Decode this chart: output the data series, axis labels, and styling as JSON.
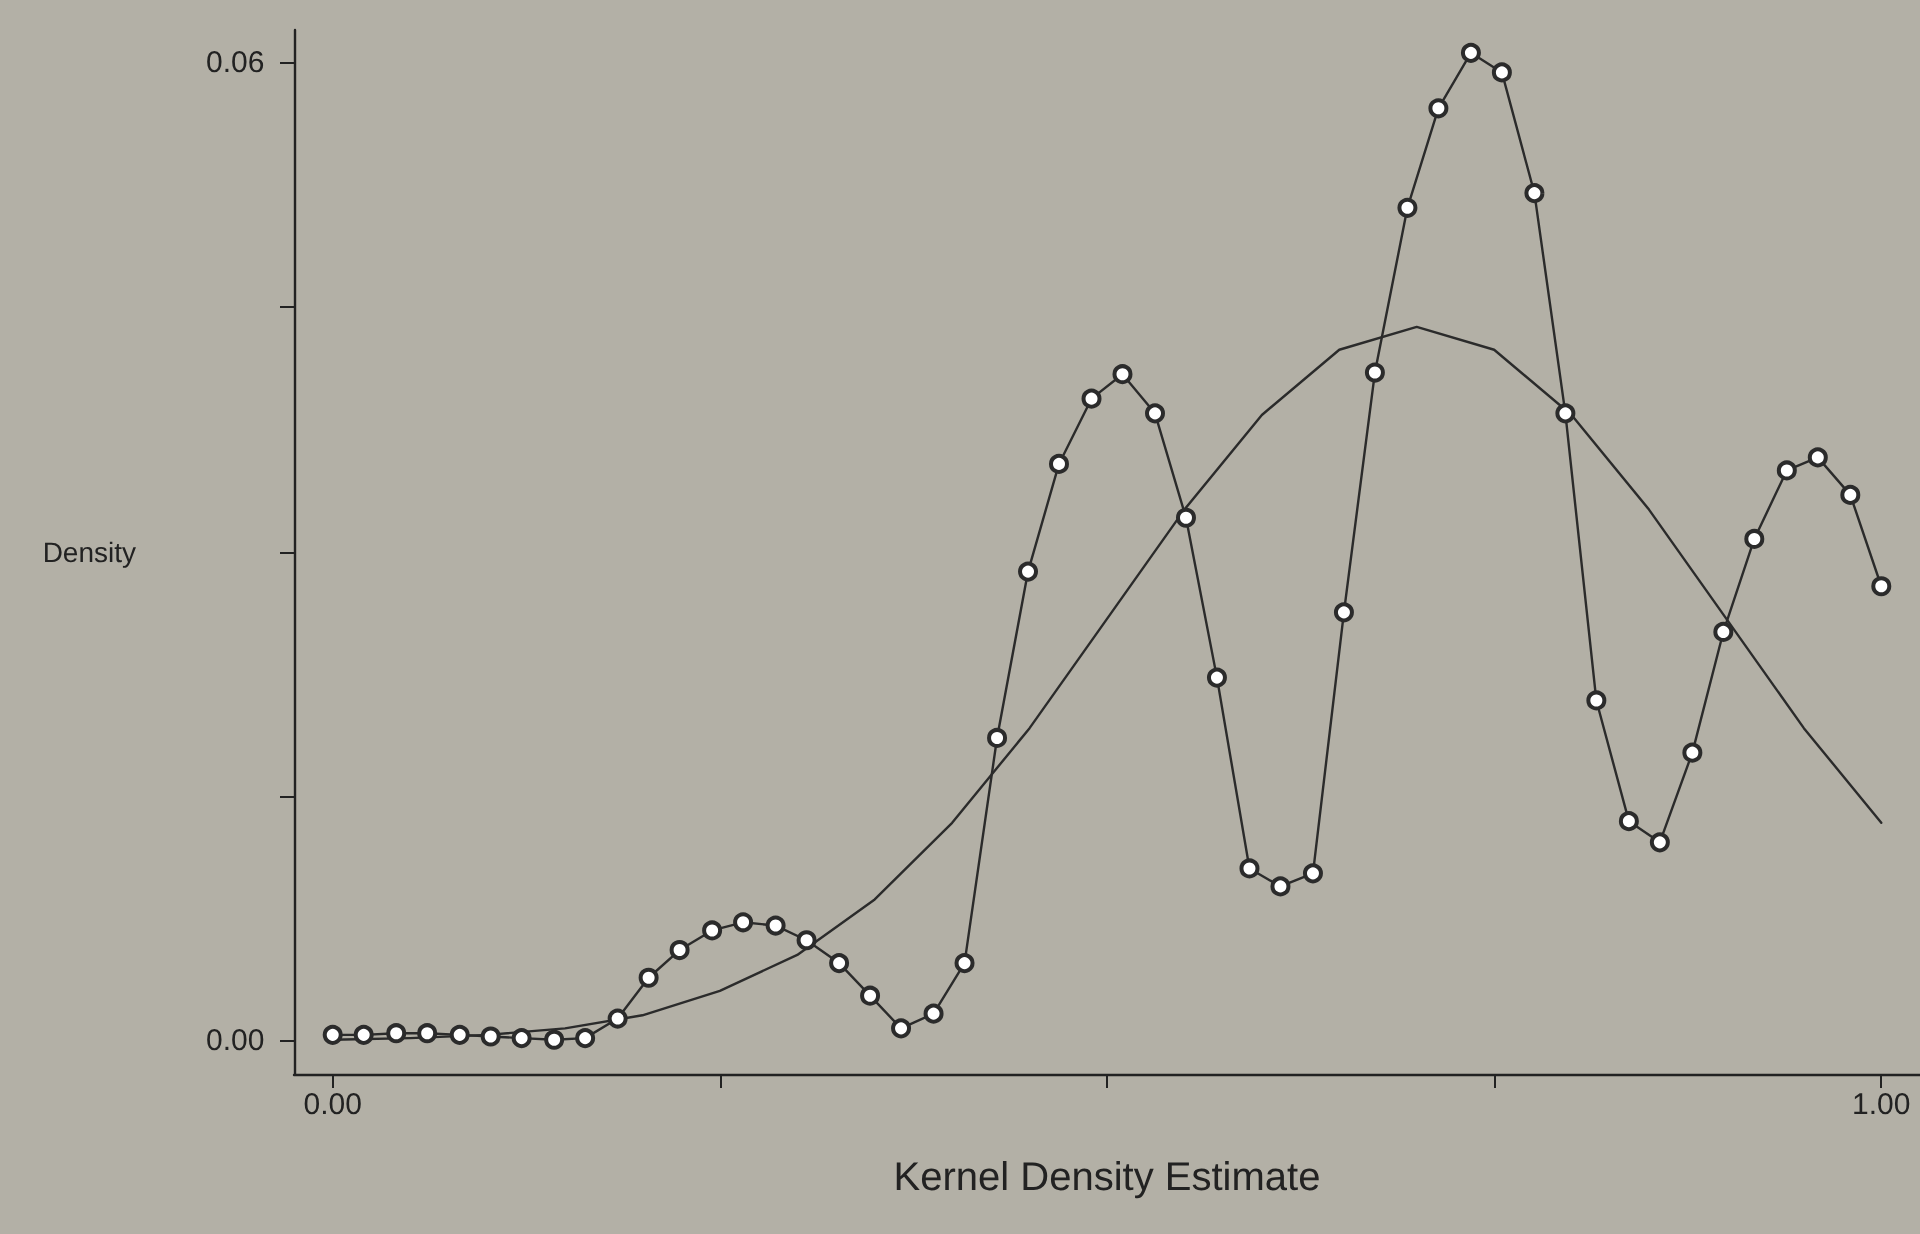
{
  "chart_data": {
    "type": "line",
    "xlabel": "Kernel Density Estimate",
    "ylabel": "Density",
    "xlim": [
      -0.025,
      1.025
    ],
    "ylim": [
      -0.002,
      0.062
    ],
    "xticks": [
      {
        "value": 0,
        "label": "0.00"
      },
      {
        "value": 0.25,
        "label": null
      },
      {
        "value": 0.5,
        "label": null
      },
      {
        "value": 0.75,
        "label": null
      },
      {
        "value": 1,
        "label": "1.00"
      }
    ],
    "yticks": [
      {
        "value": 0,
        "label": "0.00"
      },
      {
        "value": 0.015,
        "label": null
      },
      {
        "value": 0.03,
        "label": null
      },
      {
        "value": 0.045,
        "label": null
      },
      {
        "value": 0.06,
        "label": "0.06"
      }
    ],
    "grid": false,
    "line_style": "solid",
    "series": [
      {
        "color": "#2b2b2b",
        "marker": "circle",
        "x": [
          0,
          0.02,
          0.041,
          0.061,
          0.082,
          0.102,
          0.122,
          0.143,
          0.163,
          0.184,
          0.204,
          0.224,
          0.245,
          0.265,
          0.286,
          0.306,
          0.327,
          0.347,
          0.367,
          0.388,
          0.408,
          0.429,
          0.449,
          0.469,
          0.49,
          0.51,
          0.531,
          0.551,
          0.571,
          0.592,
          0.612,
          0.633,
          0.653,
          0.673,
          0.694,
          0.714,
          0.735,
          0.755,
          0.776,
          0.796,
          0.816,
          0.837,
          0.857,
          0.878,
          0.898,
          0.918,
          0.939,
          0.959,
          0.98,
          1
        ],
        "values": [
          0.0004,
          0.0004,
          0.0005,
          0.0005,
          0.0004,
          0.0003,
          0.0002,
          0.0001,
          0.0002,
          0.0014,
          0.0039,
          0.0056,
          0.0068,
          0.0073,
          0.0071,
          0.0062,
          0.0048,
          0.0028,
          0.0008,
          0.0017,
          0.0048,
          0.0186,
          0.0288,
          0.0354,
          0.0394,
          0.0409,
          0.0385,
          0.0321,
          0.0223,
          0.0106,
          0.0095,
          0.0103,
          0.0263,
          0.041,
          0.0511,
          0.0572,
          0.0606,
          0.0594,
          0.052,
          0.0385,
          0.0209,
          0.0135,
          0.0122,
          0.0177,
          0.0251,
          0.0308,
          0.035,
          0.0358,
          0.0335,
          0.0279
        ]
      },
      {
        "color": "#2b2b2b",
        "marker": "none",
        "x": [
          0,
          0.05,
          0.1,
          0.15,
          0.2,
          0.25,
          0.3,
          0.35,
          0.4,
          0.45,
          0.5,
          0.55,
          0.6,
          0.65,
          0.7,
          0.75,
          0.8,
          0.85,
          0.9,
          0.95,
          1
        ],
        "values": [
          0.0001,
          0.0002,
          0.0004,
          0.0008,
          0.0016,
          0.0031,
          0.0053,
          0.0087,
          0.0134,
          0.0192,
          0.0259,
          0.0326,
          0.0384,
          0.0424,
          0.0438,
          0.0424,
          0.0384,
          0.0326,
          0.0259,
          0.0192,
          0.0134
        ]
      }
    ]
  }
}
